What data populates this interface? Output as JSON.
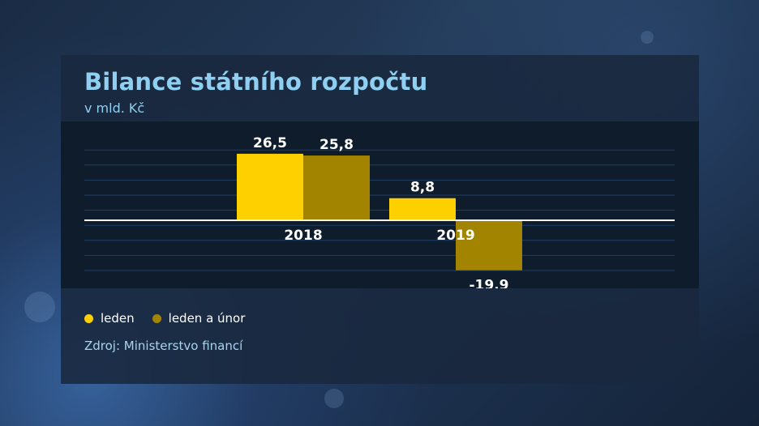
{
  "title": "Bilance státního rozpočtu",
  "subtitle": "v mld. Kč",
  "source": "Zdroj: Ministerstvo financí",
  "colors": {
    "leden": "#ffd000",
    "leden_a_unor": "#a38400"
  },
  "chart_data": {
    "type": "bar",
    "title": "Bilance státního rozpočtu",
    "ylabel": "v mld. Kč",
    "xlabel": "",
    "categories": [
      "2018",
      "2019"
    ],
    "series": [
      {
        "name": "leden",
        "values": [
          26.5,
          8.8
        ],
        "labels": [
          "26,5",
          "8,8"
        ]
      },
      {
        "name": "leden a únor",
        "values": [
          25.8,
          -19.9
        ],
        "labels": [
          "25,8",
          "-19,9"
        ]
      }
    ],
    "ylim": [
      -20,
      30
    ],
    "grid": true,
    "legend": "bottom-left"
  }
}
